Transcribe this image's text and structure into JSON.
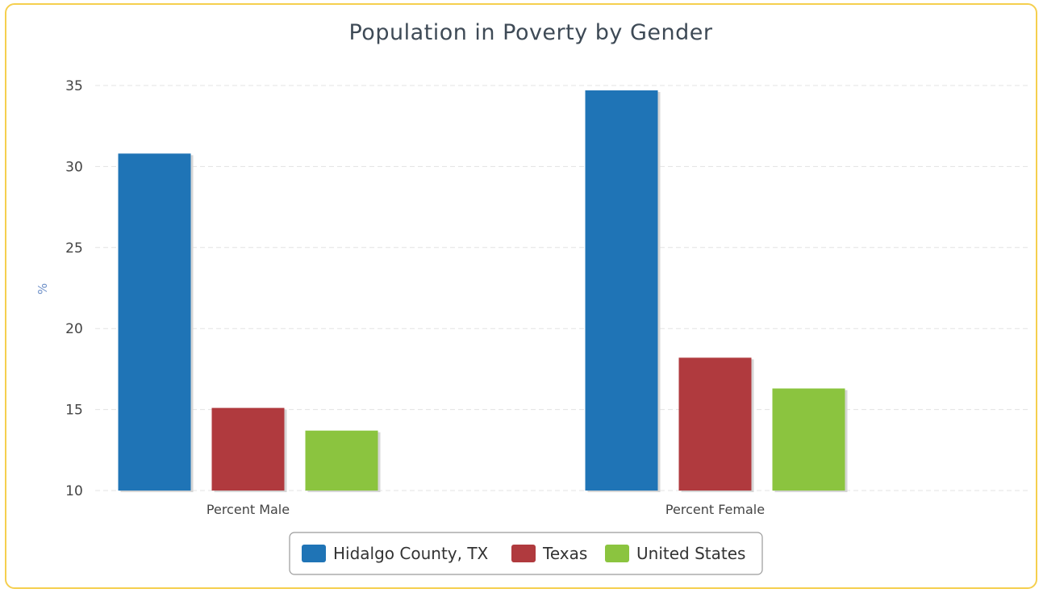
{
  "chart_data": {
    "type": "bar",
    "title": "Population in Poverty by Gender",
    "xlabel": "",
    "ylabel": "%",
    "ylim": [
      10,
      35
    ],
    "yticks": [
      10,
      15,
      20,
      25,
      30,
      35
    ],
    "grid": true,
    "legend_position": "bottom",
    "categories": [
      "Percent Male",
      "Percent Female"
    ],
    "series": [
      {
        "name": "Hidalgo County, TX",
        "color": "#1f74b6",
        "values": [
          30.8,
          34.7
        ]
      },
      {
        "name": "Texas",
        "color": "#b03a3e",
        "values": [
          15.1,
          18.2
        ]
      },
      {
        "name": "United States",
        "color": "#8bc43f",
        "values": [
          13.7,
          16.3
        ]
      }
    ]
  }
}
